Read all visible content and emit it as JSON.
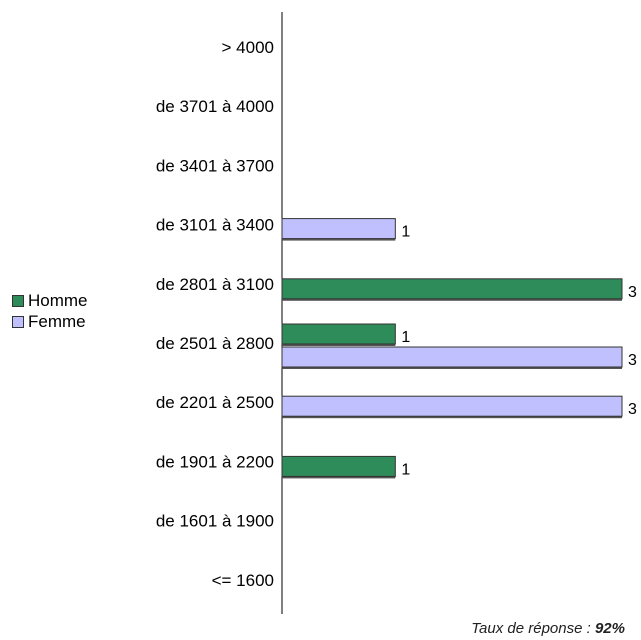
{
  "chart_data": {
    "type": "bar",
    "orientation": "horizontal",
    "categories": [
      "> 4000",
      "de 3701 à 4000",
      "de 3401 à 3700",
      "de 3101 à 3400",
      "de 2801 à 3100",
      "de 2501 à 2800",
      "de 2201 à 2500",
      "de 1901 à 2200",
      "de 1601 à 1900",
      "<= 1600"
    ],
    "series": [
      {
        "name": "Homme",
        "color": "#2e8b5a",
        "values": [
          0,
          0,
          0,
          0,
          3,
          1,
          0,
          1,
          0,
          0
        ]
      },
      {
        "name": "Femme",
        "color": "#c0c0ff",
        "values": [
          0,
          0,
          0,
          1,
          0,
          3,
          3,
          0,
          0,
          0
        ]
      }
    ],
    "xlim": [
      0,
      3
    ],
    "grid": false,
    "legend_position": "left"
  },
  "footer": {
    "label": "Taux de réponse : ",
    "value": "92%"
  }
}
